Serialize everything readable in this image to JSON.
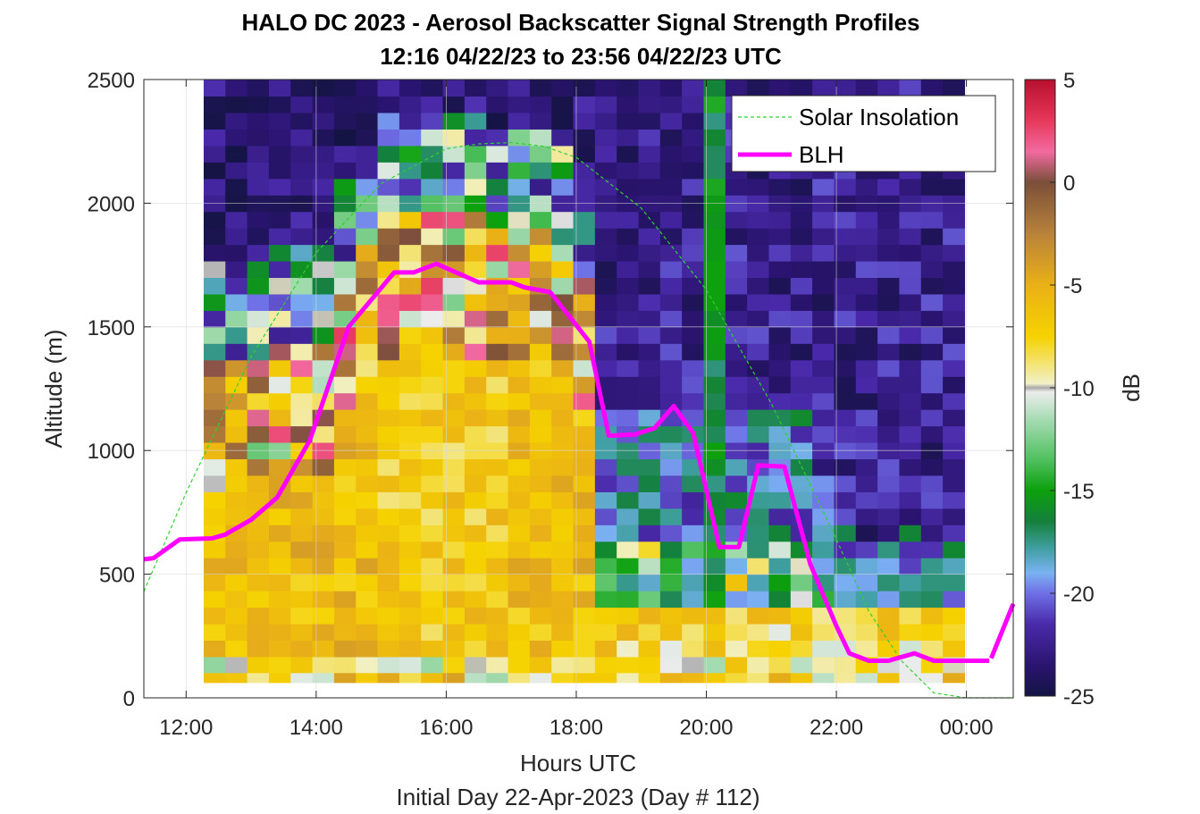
{
  "chart_data": {
    "type": "heatmap",
    "title": "HALO DC 2023 - Aerosol Backscatter Signal Strength Profiles",
    "subtitle": "12:16 04/22/23 to 23:56 04/22/23  UTC",
    "xlabel": "Hours UTC",
    "xlabel2": "Initial Day 22-Apr-2023 (Day # 112)",
    "ylabel": "Altitude (m)",
    "colorbar_label": "dB",
    "xlim": [
      11.35,
      24.72
    ],
    "ylim": [
      0,
      2500
    ],
    "clim": [
      -25,
      5
    ],
    "x_ticks": [
      12,
      14,
      16,
      18,
      20,
      22,
      24
    ],
    "x_tick_labels": [
      "12:00",
      "14:00",
      "16:00",
      "18:00",
      "20:00",
      "22:00",
      "00:00"
    ],
    "y_ticks": [
      0,
      500,
      1000,
      1500,
      2000,
      2500
    ],
    "y_tick_labels": [
      "0",
      "500",
      "1000",
      "1500",
      "2000",
      "2500"
    ],
    "colorbar_ticks": [
      5,
      0,
      -5,
      -10,
      -15,
      -20,
      -25
    ],
    "colorbar_tick_labels": [
      "5",
      "0",
      "-5",
      "-10",
      "-15",
      "-20",
      "-25"
    ],
    "grid": true,
    "legend_position": "top-right",
    "heatmap_extent": {
      "x": [
        12.27,
        23.97
      ],
      "y": [
        100,
        2500
      ]
    },
    "series": [
      {
        "name": "Solar Insolation",
        "type": "line",
        "style": "dashed",
        "color": "#2fd12f",
        "x": [
          11.35,
          12.0,
          13.0,
          14.0,
          15.0,
          16.0,
          16.5,
          17.0,
          17.5,
          18.0,
          19.0,
          20.0,
          21.0,
          22.0,
          22.5,
          23.0,
          23.5,
          24.0,
          24.72
        ],
        "y": [
          430,
          830,
          1380,
          1800,
          2080,
          2220,
          2240,
          2245,
          2230,
          2185,
          1980,
          1650,
          1190,
          640,
          350,
          150,
          20,
          0,
          0
        ]
      },
      {
        "name": "BLH",
        "type": "line",
        "style": "solid",
        "color": "#ff00ff",
        "x": [
          11.35,
          11.5,
          11.9,
          12.4,
          12.6,
          13.0,
          13.4,
          13.9,
          14.5,
          15.2,
          15.5,
          15.85,
          16.5,
          17.0,
          17.2,
          17.6,
          18.2,
          18.5,
          18.9,
          19.2,
          19.5,
          19.8,
          20.2,
          20.5,
          20.8,
          21.2,
          21.6,
          22.0,
          22.2,
          22.5,
          22.8,
          23.2,
          23.5,
          23.8,
          24.0,
          24.35
        ],
        "y": [
          560,
          565,
          640,
          645,
          660,
          720,
          810,
          1040,
          1500,
          1720,
          1720,
          1755,
          1680,
          1680,
          1660,
          1640,
          1440,
          1060,
          1065,
          1090,
          1180,
          1070,
          610,
          610,
          940,
          935,
          540,
          290,
          180,
          150,
          150,
          180,
          150,
          150,
          150,
          150
        ]
      },
      {
        "name": "",
        "type": "line",
        "style": "solid",
        "color": "#ff00ff",
        "x": [
          24.38,
          24.72
        ],
        "y": [
          160,
          380
        ]
      }
    ],
    "colormap": [
      {
        "v": -25,
        "color": "#141443"
      },
      {
        "v": -23.5,
        "color": "#2a1470"
      },
      {
        "v": -21.5,
        "color": "#4a2aaa"
      },
      {
        "v": -20,
        "color": "#6f6fe6"
      },
      {
        "v": -19,
        "color": "#7ab2f2"
      },
      {
        "v": -17.8,
        "color": "#3f9fa0"
      },
      {
        "v": -16.5,
        "color": "#14803c"
      },
      {
        "v": -15,
        "color": "#0ca00c"
      },
      {
        "v": -13.5,
        "color": "#4fc05f"
      },
      {
        "v": -11.5,
        "color": "#a8dcb4"
      },
      {
        "v": -10.2,
        "color": "#ececec"
      },
      {
        "v": -10,
        "color": "#a8a8a8"
      },
      {
        "v": -9.8,
        "color": "#f2f0c8"
      },
      {
        "v": -7.5,
        "color": "#f5d200"
      },
      {
        "v": -5,
        "color": "#eab017"
      },
      {
        "v": -2.5,
        "color": "#b8823a"
      },
      {
        "v": 0,
        "color": "#7b4f3a"
      },
      {
        "v": 1.5,
        "color": "#f26aa0"
      },
      {
        "v": 3,
        "color": "#e6385a"
      },
      {
        "v": 5,
        "color": "#b80f2e"
      }
    ]
  }
}
